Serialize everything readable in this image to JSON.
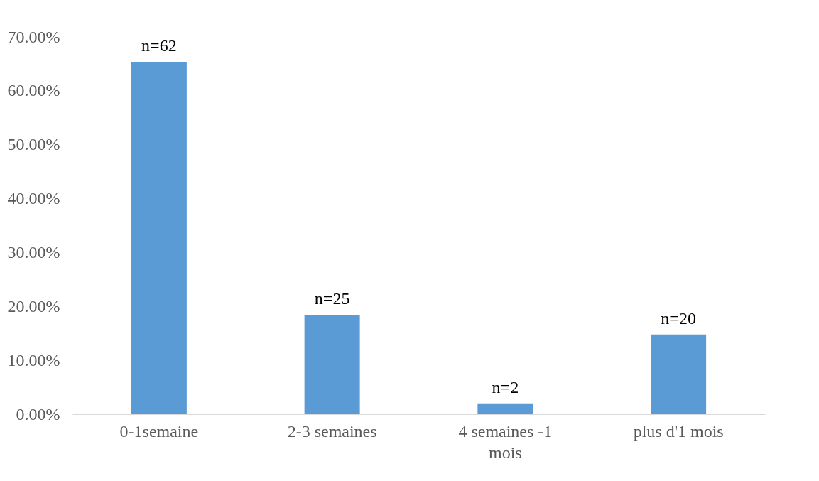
{
  "chart_data": {
    "type": "bar",
    "categories": [
      "0-1semaine",
      "2-3 semaines",
      "4 semaines -1 mois",
      "plus d'1 mois"
    ],
    "values": [
      65.4,
      18.4,
      2.0,
      14.8
    ],
    "annotations": [
      {
        "text": "n=62",
        "x": "0-1semaine",
        "y": 65.4
      },
      {
        "text": "n=25",
        "x": "2-3 semaines",
        "y": 18.4
      },
      {
        "text": "n=2",
        "x": "4 semaines -1 mois",
        "y": 2.0
      },
      {
        "text": "n=20",
        "x": "plus d'1 mois",
        "y": 14.8
      }
    ],
    "color": "#5b9bd5",
    "ylim": [
      0,
      70
    ],
    "yticks": [
      {
        "value": 0,
        "label": "0.00%"
      },
      {
        "value": 10,
        "label": "10.00%"
      },
      {
        "value": 20,
        "label": "20.00%"
      },
      {
        "value": 30,
        "label": "30.00%"
      },
      {
        "value": 40,
        "label": "40.00%"
      },
      {
        "value": 50,
        "label": "50.00%"
      },
      {
        "value": 60,
        "label": "60.00%"
      },
      {
        "value": 70,
        "label": "70.00%"
      }
    ],
    "grid": false
  }
}
